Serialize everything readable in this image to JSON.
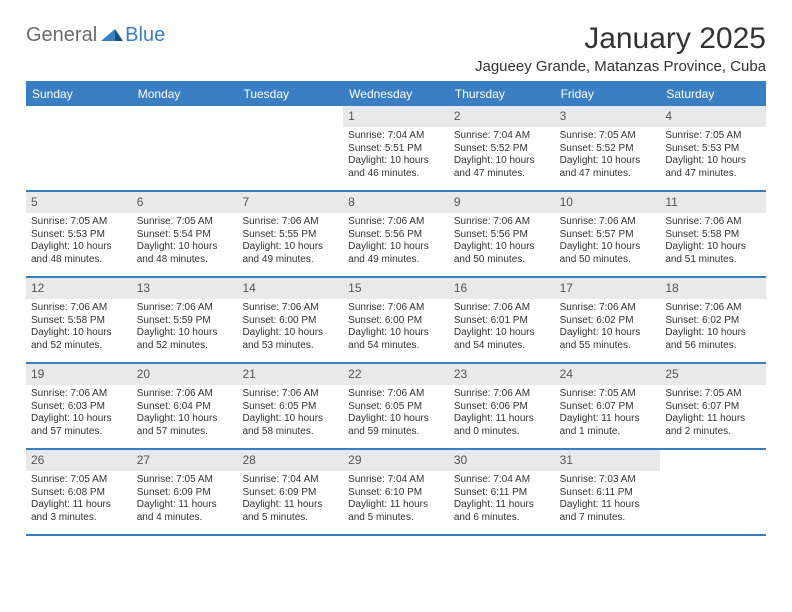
{
  "logo": {
    "word1": "General",
    "word2": "Blue"
  },
  "title": "January 2025",
  "location": "Jagueey Grande, Matanzas Province, Cuba",
  "colors": {
    "brand_blue": "#3a7fc4",
    "header_grey": "#e9e9e9",
    "text": "#333333",
    "logo_grey": "#6b6b6b"
  },
  "dayNames": [
    "Sunday",
    "Monday",
    "Tuesday",
    "Wednesday",
    "Thursday",
    "Friday",
    "Saturday"
  ],
  "weeks": [
    [
      {
        "empty": true
      },
      {
        "empty": true
      },
      {
        "empty": true
      },
      {
        "day": "1",
        "sunrise": "Sunrise: 7:04 AM",
        "sunset": "Sunset: 5:51 PM",
        "daylight1": "Daylight: 10 hours",
        "daylight2": "and 46 minutes."
      },
      {
        "day": "2",
        "sunrise": "Sunrise: 7:04 AM",
        "sunset": "Sunset: 5:52 PM",
        "daylight1": "Daylight: 10 hours",
        "daylight2": "and 47 minutes."
      },
      {
        "day": "3",
        "sunrise": "Sunrise: 7:05 AM",
        "sunset": "Sunset: 5:52 PM",
        "daylight1": "Daylight: 10 hours",
        "daylight2": "and 47 minutes."
      },
      {
        "day": "4",
        "sunrise": "Sunrise: 7:05 AM",
        "sunset": "Sunset: 5:53 PM",
        "daylight1": "Daylight: 10 hours",
        "daylight2": "and 47 minutes."
      }
    ],
    [
      {
        "day": "5",
        "sunrise": "Sunrise: 7:05 AM",
        "sunset": "Sunset: 5:53 PM",
        "daylight1": "Daylight: 10 hours",
        "daylight2": "and 48 minutes."
      },
      {
        "day": "6",
        "sunrise": "Sunrise: 7:05 AM",
        "sunset": "Sunset: 5:54 PM",
        "daylight1": "Daylight: 10 hours",
        "daylight2": "and 48 minutes."
      },
      {
        "day": "7",
        "sunrise": "Sunrise: 7:06 AM",
        "sunset": "Sunset: 5:55 PM",
        "daylight1": "Daylight: 10 hours",
        "daylight2": "and 49 minutes."
      },
      {
        "day": "8",
        "sunrise": "Sunrise: 7:06 AM",
        "sunset": "Sunset: 5:56 PM",
        "daylight1": "Daylight: 10 hours",
        "daylight2": "and 49 minutes."
      },
      {
        "day": "9",
        "sunrise": "Sunrise: 7:06 AM",
        "sunset": "Sunset: 5:56 PM",
        "daylight1": "Daylight: 10 hours",
        "daylight2": "and 50 minutes."
      },
      {
        "day": "10",
        "sunrise": "Sunrise: 7:06 AM",
        "sunset": "Sunset: 5:57 PM",
        "daylight1": "Daylight: 10 hours",
        "daylight2": "and 50 minutes."
      },
      {
        "day": "11",
        "sunrise": "Sunrise: 7:06 AM",
        "sunset": "Sunset: 5:58 PM",
        "daylight1": "Daylight: 10 hours",
        "daylight2": "and 51 minutes."
      }
    ],
    [
      {
        "day": "12",
        "sunrise": "Sunrise: 7:06 AM",
        "sunset": "Sunset: 5:58 PM",
        "daylight1": "Daylight: 10 hours",
        "daylight2": "and 52 minutes."
      },
      {
        "day": "13",
        "sunrise": "Sunrise: 7:06 AM",
        "sunset": "Sunset: 5:59 PM",
        "daylight1": "Daylight: 10 hours",
        "daylight2": "and 52 minutes."
      },
      {
        "day": "14",
        "sunrise": "Sunrise: 7:06 AM",
        "sunset": "Sunset: 6:00 PM",
        "daylight1": "Daylight: 10 hours",
        "daylight2": "and 53 minutes."
      },
      {
        "day": "15",
        "sunrise": "Sunrise: 7:06 AM",
        "sunset": "Sunset: 6:00 PM",
        "daylight1": "Daylight: 10 hours",
        "daylight2": "and 54 minutes."
      },
      {
        "day": "16",
        "sunrise": "Sunrise: 7:06 AM",
        "sunset": "Sunset: 6:01 PM",
        "daylight1": "Daylight: 10 hours",
        "daylight2": "and 54 minutes."
      },
      {
        "day": "17",
        "sunrise": "Sunrise: 7:06 AM",
        "sunset": "Sunset: 6:02 PM",
        "daylight1": "Daylight: 10 hours",
        "daylight2": "and 55 minutes."
      },
      {
        "day": "18",
        "sunrise": "Sunrise: 7:06 AM",
        "sunset": "Sunset: 6:02 PM",
        "daylight1": "Daylight: 10 hours",
        "daylight2": "and 56 minutes."
      }
    ],
    [
      {
        "day": "19",
        "sunrise": "Sunrise: 7:06 AM",
        "sunset": "Sunset: 6:03 PM",
        "daylight1": "Daylight: 10 hours",
        "daylight2": "and 57 minutes."
      },
      {
        "day": "20",
        "sunrise": "Sunrise: 7:06 AM",
        "sunset": "Sunset: 6:04 PM",
        "daylight1": "Daylight: 10 hours",
        "daylight2": "and 57 minutes."
      },
      {
        "day": "21",
        "sunrise": "Sunrise: 7:06 AM",
        "sunset": "Sunset: 6:05 PM",
        "daylight1": "Daylight: 10 hours",
        "daylight2": "and 58 minutes."
      },
      {
        "day": "22",
        "sunrise": "Sunrise: 7:06 AM",
        "sunset": "Sunset: 6:05 PM",
        "daylight1": "Daylight: 10 hours",
        "daylight2": "and 59 minutes."
      },
      {
        "day": "23",
        "sunrise": "Sunrise: 7:06 AM",
        "sunset": "Sunset: 6:06 PM",
        "daylight1": "Daylight: 11 hours",
        "daylight2": "and 0 minutes."
      },
      {
        "day": "24",
        "sunrise": "Sunrise: 7:05 AM",
        "sunset": "Sunset: 6:07 PM",
        "daylight1": "Daylight: 11 hours",
        "daylight2": "and 1 minute."
      },
      {
        "day": "25",
        "sunrise": "Sunrise: 7:05 AM",
        "sunset": "Sunset: 6:07 PM",
        "daylight1": "Daylight: 11 hours",
        "daylight2": "and 2 minutes."
      }
    ],
    [
      {
        "day": "26",
        "sunrise": "Sunrise: 7:05 AM",
        "sunset": "Sunset: 6:08 PM",
        "daylight1": "Daylight: 11 hours",
        "daylight2": "and 3 minutes."
      },
      {
        "day": "27",
        "sunrise": "Sunrise: 7:05 AM",
        "sunset": "Sunset: 6:09 PM",
        "daylight1": "Daylight: 11 hours",
        "daylight2": "and 4 minutes."
      },
      {
        "day": "28",
        "sunrise": "Sunrise: 7:04 AM",
        "sunset": "Sunset: 6:09 PM",
        "daylight1": "Daylight: 11 hours",
        "daylight2": "and 5 minutes."
      },
      {
        "day": "29",
        "sunrise": "Sunrise: 7:04 AM",
        "sunset": "Sunset: 6:10 PM",
        "daylight1": "Daylight: 11 hours",
        "daylight2": "and 5 minutes."
      },
      {
        "day": "30",
        "sunrise": "Sunrise: 7:04 AM",
        "sunset": "Sunset: 6:11 PM",
        "daylight1": "Daylight: 11 hours",
        "daylight2": "and 6 minutes."
      },
      {
        "day": "31",
        "sunrise": "Sunrise: 7:03 AM",
        "sunset": "Sunset: 6:11 PM",
        "daylight1": "Daylight: 11 hours",
        "daylight2": "and 7 minutes."
      },
      {
        "empty": true
      }
    ]
  ]
}
